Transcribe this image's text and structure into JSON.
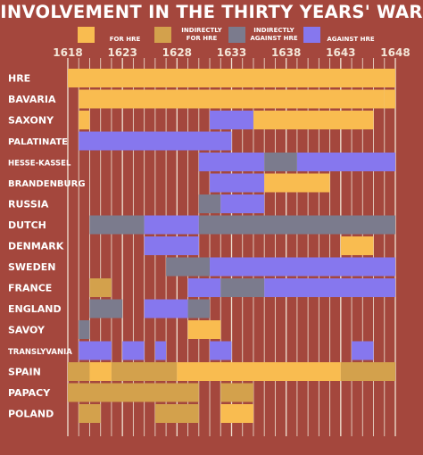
{
  "chart_data": {
    "type": "bar",
    "title": "INVOLVEMENT IN THE THIRTY YEARS' WAR",
    "xlim": [
      1618,
      1648
    ],
    "x_ticks": [
      1618,
      1623,
      1628,
      1633,
      1638,
      1643,
      1648
    ],
    "legend": [
      {
        "key": "for",
        "label_lines": [
          "FOR HRE"
        ],
        "color": "#f9bc50"
      },
      {
        "key": "ind_for",
        "label_lines": [
          "INDIRECTLY",
          "FOR HRE"
        ],
        "color": "#d3a14c"
      },
      {
        "key": "ind_against",
        "label_lines": [
          "INDIRECTLY",
          "AGAINST HRE"
        ],
        "color": "#7b7b8d"
      },
      {
        "key": "against",
        "label_lines": [
          "AGAINST HRE"
        ],
        "color": "#8677ee"
      }
    ],
    "categories": [
      "HRE",
      "BAVARIA",
      "SAXONY",
      "PALATINATE",
      "HESSE-KASSEL",
      "BRANDENBURG",
      "RUSSIA",
      "DUTCH",
      "DENMARK",
      "SWEDEN",
      "FRANCE",
      "ENGLAND",
      "SAVOY",
      "TRANSLYVANIA",
      "SPAIN",
      "PAPACY",
      "POLAND"
    ],
    "series": [
      {
        "category": "HRE",
        "segments": [
          {
            "start": 1618,
            "end": 1648,
            "status": "for"
          }
        ]
      },
      {
        "category": "BAVARIA",
        "segments": [
          {
            "start": 1619,
            "end": 1647,
            "status": "for"
          },
          {
            "start": 1647,
            "end": 1648,
            "status": "for"
          }
        ]
      },
      {
        "category": "SAXONY",
        "segments": [
          {
            "start": 1619,
            "end": 1620,
            "status": "for"
          },
          {
            "start": 1631,
            "end": 1635,
            "status": "against"
          },
          {
            "start": 1635,
            "end": 1646,
            "status": "for"
          }
        ]
      },
      {
        "category": "PALATINATE",
        "segments": [
          {
            "start": 1619,
            "end": 1633,
            "status": "against"
          }
        ]
      },
      {
        "category": "HESSE-KASSEL",
        "segments": [
          {
            "start": 1630,
            "end": 1636,
            "status": "against"
          },
          {
            "start": 1636,
            "end": 1639,
            "status": "ind_against"
          },
          {
            "start": 1639,
            "end": 1648,
            "status": "against"
          }
        ]
      },
      {
        "category": "BRANDENBURG",
        "segments": [
          {
            "start": 1631,
            "end": 1636,
            "status": "against"
          },
          {
            "start": 1636,
            "end": 1642,
            "status": "for"
          }
        ]
      },
      {
        "category": "RUSSIA",
        "segments": [
          {
            "start": 1630,
            "end": 1632,
            "status": "ind_against"
          },
          {
            "start": 1632,
            "end": 1636,
            "status": "against"
          }
        ]
      },
      {
        "category": "DUTCH",
        "segments": [
          {
            "start": 1620,
            "end": 1625,
            "status": "ind_against"
          },
          {
            "start": 1625,
            "end": 1630,
            "status": "against"
          },
          {
            "start": 1630,
            "end": 1648,
            "status": "ind_against"
          }
        ]
      },
      {
        "category": "DENMARK",
        "segments": [
          {
            "start": 1625,
            "end": 1630,
            "status": "against"
          },
          {
            "start": 1643,
            "end": 1646,
            "status": "for"
          }
        ]
      },
      {
        "category": "SWEDEN",
        "segments": [
          {
            "start": 1627,
            "end": 1631,
            "status": "ind_against"
          },
          {
            "start": 1631,
            "end": 1648,
            "status": "against"
          }
        ]
      },
      {
        "category": "FRANCE",
        "segments": [
          {
            "start": 1620,
            "end": 1622,
            "status": "ind_for"
          },
          {
            "start": 1629,
            "end": 1632,
            "status": "against"
          },
          {
            "start": 1632,
            "end": 1636,
            "status": "ind_against"
          },
          {
            "start": 1636,
            "end": 1648,
            "status": "against"
          }
        ]
      },
      {
        "category": "ENGLAND",
        "segments": [
          {
            "start": 1620,
            "end": 1623,
            "status": "ind_against"
          },
          {
            "start": 1625,
            "end": 1629,
            "status": "against"
          },
          {
            "start": 1629,
            "end": 1631,
            "status": "ind_against"
          }
        ]
      },
      {
        "category": "SAVOY",
        "segments": [
          {
            "start": 1619,
            "end": 1620,
            "status": "ind_against"
          },
          {
            "start": 1629,
            "end": 1632,
            "status": "for"
          }
        ]
      },
      {
        "category": "TRANSLYVANIA",
        "segments": [
          {
            "start": 1619,
            "end": 1622,
            "status": "against"
          },
          {
            "start": 1623,
            "end": 1625,
            "status": "against"
          },
          {
            "start": 1626,
            "end": 1627,
            "status": "against"
          },
          {
            "start": 1631,
            "end": 1633,
            "status": "against"
          },
          {
            "start": 1644,
            "end": 1646,
            "status": "against"
          }
        ]
      },
      {
        "category": "SPAIN",
        "segments": [
          {
            "start": 1618,
            "end": 1620,
            "status": "ind_for"
          },
          {
            "start": 1620,
            "end": 1622,
            "status": "for"
          },
          {
            "start": 1622,
            "end": 1628,
            "status": "ind_for"
          },
          {
            "start": 1628,
            "end": 1643,
            "status": "for"
          },
          {
            "start": 1643,
            "end": 1648,
            "status": "ind_for"
          }
        ]
      },
      {
        "category": "PAPACY",
        "segments": [
          {
            "start": 1618,
            "end": 1630,
            "status": "ind_for"
          },
          {
            "start": 1632,
            "end": 1635,
            "status": "ind_for"
          }
        ]
      },
      {
        "category": "POLAND",
        "segments": [
          {
            "start": 1619,
            "end": 1621,
            "status": "ind_for"
          },
          {
            "start": 1626,
            "end": 1630,
            "status": "ind_for"
          },
          {
            "start": 1632,
            "end": 1635,
            "status": "for"
          }
        ]
      }
    ]
  }
}
